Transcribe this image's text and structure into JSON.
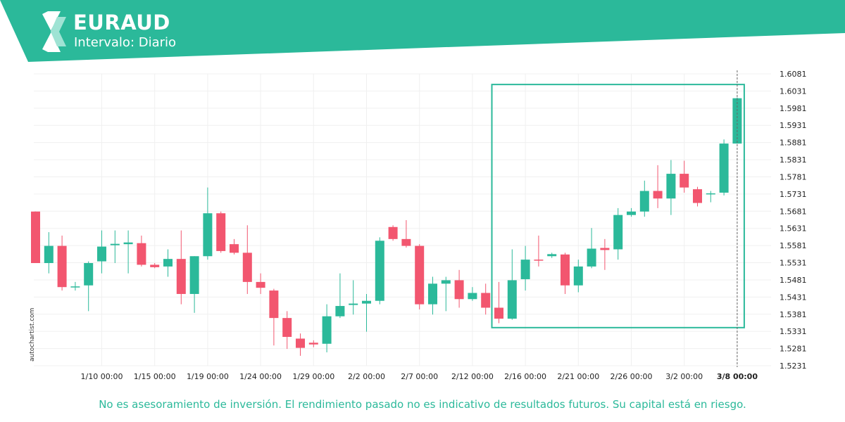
{
  "header": {
    "symbol": "EURAUD",
    "interval": "Intervalo: Diario",
    "brand_color": "#2bb99a"
  },
  "watermark": "autochartist.com",
  "disclaimer": "No es asesoramiento de inversión. El rendimiento pasado no es indicativo de resultados futuros. Su capital está en riesgo.",
  "colors": {
    "up": "#2bb99a",
    "down": "#f2566f",
    "box": "#2bb99a",
    "grid": "#f0f0f0"
  },
  "chart_data": {
    "type": "candlestick",
    "symbol": "EURAUD",
    "ylim": [
      1.5231,
      1.6081
    ],
    "y_ticks": [
      "1.6081",
      "1.6031",
      "1.5981",
      "1.5931",
      "1.5881",
      "1.5831",
      "1.5781",
      "1.5731",
      "1.5681",
      "1.5631",
      "1.5581",
      "1.5531",
      "1.5481",
      "1.5431",
      "1.5381",
      "1.5331",
      "1.5281",
      "1.5231"
    ],
    "x_ticks": [
      {
        "label": "1/10 00:00",
        "index": 5
      },
      {
        "label": "1/15 00:00",
        "index": 9
      },
      {
        "label": "1/19 00:00",
        "index": 13
      },
      {
        "label": "1/24 00:00",
        "index": 17
      },
      {
        "label": "1/29 00:00",
        "index": 21
      },
      {
        "label": "2/2 00:00",
        "index": 25
      },
      {
        "label": "2/7 00:00",
        "index": 29
      },
      {
        "label": "2/12 00:00",
        "index": 33
      },
      {
        "label": "2/16 00:00",
        "index": 37
      },
      {
        "label": "2/21 00:00",
        "index": 41
      },
      {
        "label": "2/26 00:00",
        "index": 45
      },
      {
        "label": "3/2 00:00",
        "index": 49
      },
      {
        "label": "3/8 00:00",
        "index": 53,
        "bold": true
      }
    ],
    "candles": [
      {
        "o": 1.568,
        "h": 1.568,
        "l": 1.553,
        "c": 1.553
      },
      {
        "o": 1.553,
        "h": 1.562,
        "l": 1.55,
        "c": 1.558
      },
      {
        "o": 1.558,
        "h": 1.561,
        "l": 1.545,
        "c": 1.546
      },
      {
        "o": 1.546,
        "h": 1.5475,
        "l": 1.545,
        "c": 1.5462
      },
      {
        "o": 1.5465,
        "h": 1.5535,
        "l": 1.539,
        "c": 1.553
      },
      {
        "o": 1.5535,
        "h": 1.5625,
        "l": 1.55,
        "c": 1.5578
      },
      {
        "o": 1.5582,
        "h": 1.5625,
        "l": 1.553,
        "c": 1.5586
      },
      {
        "o": 1.5585,
        "h": 1.5625,
        "l": 1.55,
        "c": 1.559
      },
      {
        "o": 1.5588,
        "h": 1.561,
        "l": 1.552,
        "c": 1.5525
      },
      {
        "o": 1.5525,
        "h": 1.553,
        "l": 1.5515,
        "c": 1.5518
      },
      {
        "o": 1.552,
        "h": 1.557,
        "l": 1.549,
        "c": 1.5542
      },
      {
        "o": 1.5542,
        "h": 1.5625,
        "l": 1.541,
        "c": 1.544
      },
      {
        "o": 1.544,
        "h": 1.555,
        "l": 1.5385,
        "c": 1.555
      },
      {
        "o": 1.555,
        "h": 1.575,
        "l": 1.554,
        "c": 1.5675
      },
      {
        "o": 1.5675,
        "h": 1.568,
        "l": 1.556,
        "c": 1.5565
      },
      {
        "o": 1.5585,
        "h": 1.56,
        "l": 1.5555,
        "c": 1.556
      },
      {
        "o": 1.556,
        "h": 1.564,
        "l": 1.544,
        "c": 1.5475
      },
      {
        "o": 1.5475,
        "h": 1.55,
        "l": 1.544,
        "c": 1.5458
      },
      {
        "o": 1.545,
        "h": 1.5455,
        "l": 1.529,
        "c": 1.537
      },
      {
        "o": 1.537,
        "h": 1.539,
        "l": 1.528,
        "c": 1.5315
      },
      {
        "o": 1.531,
        "h": 1.5325,
        "l": 1.526,
        "c": 1.5283
      },
      {
        "o": 1.5298,
        "h": 1.5305,
        "l": 1.5285,
        "c": 1.5293
      },
      {
        "o": 1.5295,
        "h": 1.541,
        "l": 1.527,
        "c": 1.5375
      },
      {
        "o": 1.5375,
        "h": 1.55,
        "l": 1.537,
        "c": 1.5405
      },
      {
        "o": 1.5408,
        "h": 1.548,
        "l": 1.538,
        "c": 1.5412
      },
      {
        "o": 1.5412,
        "h": 1.544,
        "l": 1.533,
        "c": 1.542
      },
      {
        "o": 1.542,
        "h": 1.5605,
        "l": 1.541,
        "c": 1.5595
      },
      {
        "o": 1.5635,
        "h": 1.564,
        "l": 1.5595,
        "c": 1.56
      },
      {
        "o": 1.56,
        "h": 1.5655,
        "l": 1.5575,
        "c": 1.558
      },
      {
        "o": 1.558,
        "h": 1.5585,
        "l": 1.5395,
        "c": 1.541
      },
      {
        "o": 1.541,
        "h": 1.549,
        "l": 1.538,
        "c": 1.547
      },
      {
        "o": 1.547,
        "h": 1.549,
        "l": 1.539,
        "c": 1.548
      },
      {
        "o": 1.548,
        "h": 1.551,
        "l": 1.54,
        "c": 1.5425
      },
      {
        "o": 1.5425,
        "h": 1.546,
        "l": 1.542,
        "c": 1.5443
      },
      {
        "o": 1.5443,
        "h": 1.547,
        "l": 1.538,
        "c": 1.54
      },
      {
        "o": 1.54,
        "h": 1.5475,
        "l": 1.5355,
        "c": 1.5368
      },
      {
        "o": 1.5368,
        "h": 1.557,
        "l": 1.5365,
        "c": 1.548
      },
      {
        "o": 1.5483,
        "h": 1.558,
        "l": 1.545,
        "c": 1.554
      },
      {
        "o": 1.554,
        "h": 1.561,
        "l": 1.552,
        "c": 1.5537
      },
      {
        "o": 1.555,
        "h": 1.556,
        "l": 1.5545,
        "c": 1.5556
      },
      {
        "o": 1.5555,
        "h": 1.556,
        "l": 1.544,
        "c": 1.5465
      },
      {
        "o": 1.5465,
        "h": 1.554,
        "l": 1.5445,
        "c": 1.552
      },
      {
        "o": 1.552,
        "h": 1.5632,
        "l": 1.5515,
        "c": 1.5572
      },
      {
        "o": 1.5574,
        "h": 1.56,
        "l": 1.551,
        "c": 1.5568
      },
      {
        "o": 1.557,
        "h": 1.569,
        "l": 1.554,
        "c": 1.567
      },
      {
        "o": 1.567,
        "h": 1.569,
        "l": 1.5665,
        "c": 1.568
      },
      {
        "o": 1.568,
        "h": 1.577,
        "l": 1.5665,
        "c": 1.574
      },
      {
        "o": 1.574,
        "h": 1.5815,
        "l": 1.569,
        "c": 1.5718
      },
      {
        "o": 1.5718,
        "h": 1.583,
        "l": 1.567,
        "c": 1.579
      },
      {
        "o": 1.579,
        "h": 1.5828,
        "l": 1.5735,
        "c": 1.575
      },
      {
        "o": 1.5745,
        "h": 1.5752,
        "l": 1.5695,
        "c": 1.5705
      },
      {
        "o": 1.5732,
        "h": 1.574,
        "l": 1.5707,
        "c": 1.5733
      },
      {
        "o": 1.5735,
        "h": 1.589,
        "l": 1.5727,
        "c": 1.5878
      },
      {
        "o": 1.5878,
        "h": 1.6012,
        "l": 1.5878,
        "c": 1.601
      }
    ],
    "highlight_box": {
      "from_index": 35,
      "to_index": 53,
      "top": 1.605,
      "bottom": 1.5342
    },
    "current_line_index": 53
  }
}
